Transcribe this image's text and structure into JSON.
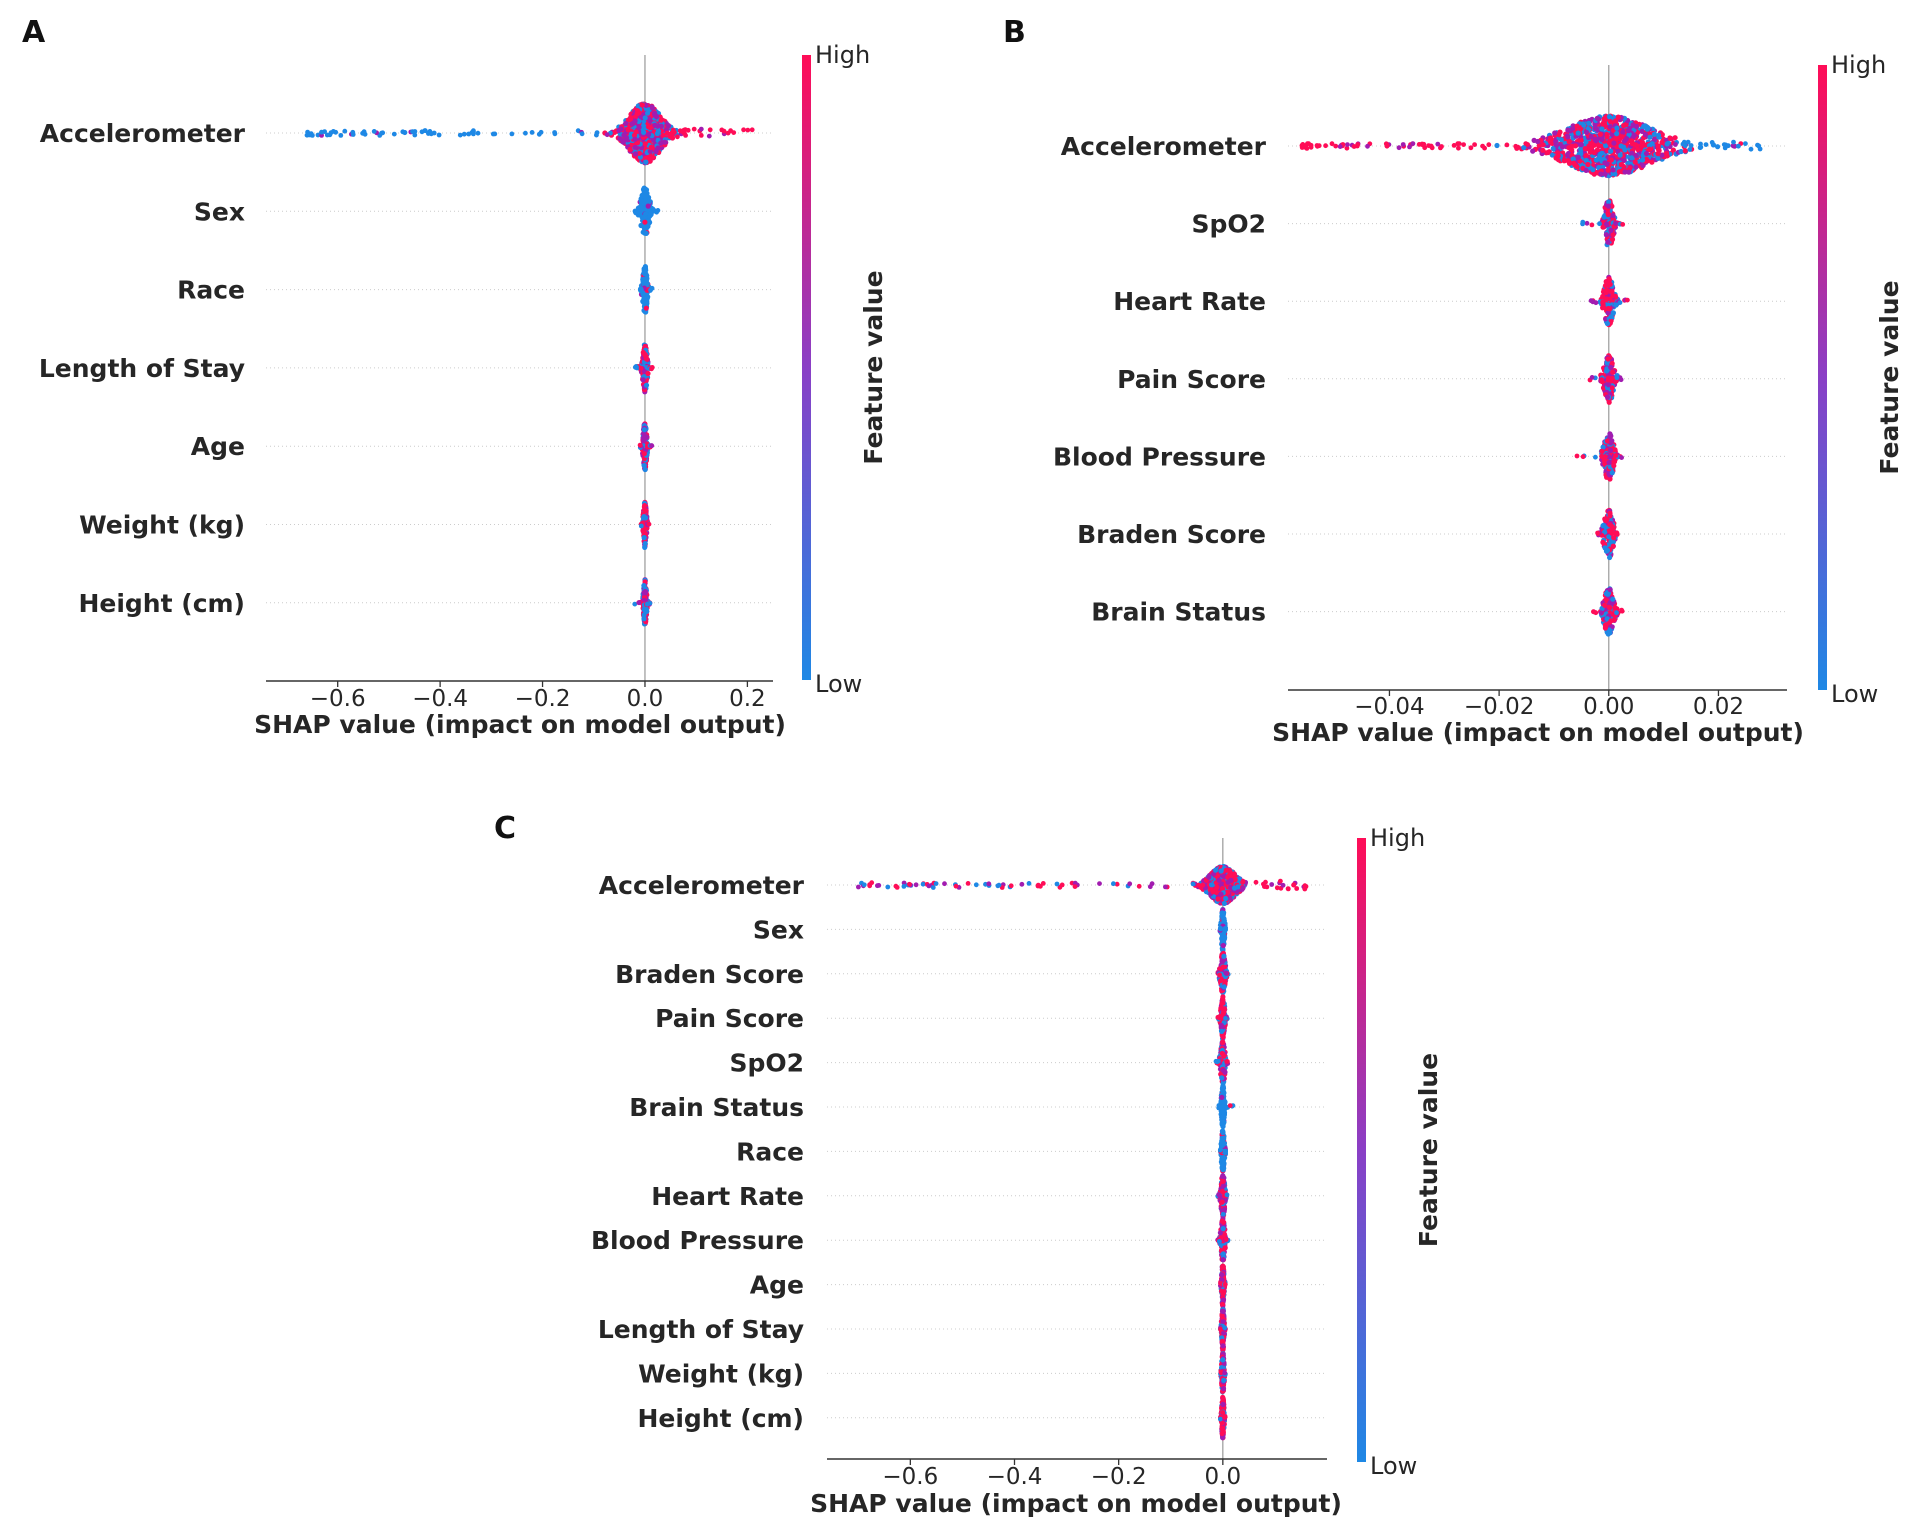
{
  "chart_data": [
    {
      "panel": "A",
      "type": "scatter",
      "subtype": "shap-beeswarm",
      "features": [
        "Accelerometer",
        "Sex",
        "Race",
        "Length of Stay",
        "Age",
        "Weight (kg)",
        "Height (cm)"
      ],
      "spread": [
        [
          -0.66,
          0.21
        ],
        [
          -0.02,
          0.03
        ],
        [
          -0.01,
          0.025
        ],
        [
          -0.02,
          0.025
        ],
        [
          -0.01,
          0.015
        ],
        [
          -0.008,
          0.008
        ],
        [
          -0.02,
          0.01
        ]
      ],
      "core_width": [
        0.045,
        0.012,
        0.006,
        0.006,
        0.005,
        0.004,
        0.004
      ],
      "xticks": [
        -0.6,
        -0.4,
        -0.2,
        0.0,
        0.2
      ],
      "xtick_labels": [
        "−0.6",
        "−0.4",
        "−0.2",
        "0.0",
        "0.2"
      ],
      "xlim": [
        -0.74,
        0.25
      ],
      "xlabel": "SHAP value (impact on model output)",
      "colorbar": {
        "title": "Feature value",
        "high": "High",
        "low": "Low"
      },
      "dominant_color": [
        "mixed",
        "low",
        "low",
        "mixed",
        "mixed",
        "mixed",
        "mixed"
      ],
      "tail_color": "low"
    },
    {
      "panel": "B",
      "type": "scatter",
      "subtype": "shap-beeswarm",
      "features": [
        "Accelerometer",
        "SpO2",
        "Heart Rate",
        "Pain Score",
        "Blood Pressure",
        "Braden Score",
        "Brain Status"
      ],
      "spread": [
        [
          -0.056,
          0.028
        ],
        [
          -0.005,
          0.003
        ],
        [
          -0.0035,
          0.0035
        ],
        [
          -0.004,
          0.003
        ],
        [
          -0.006,
          0.0025
        ],
        [
          -0.003,
          0.002
        ],
        [
          -0.003,
          0.003
        ]
      ],
      "core_width": [
        0.012,
        0.0012,
        0.0012,
        0.0012,
        0.0012,
        0.0012,
        0.0012
      ],
      "xticks": [
        -0.04,
        -0.02,
        0.0,
        0.02
      ],
      "xtick_labels": [
        "−0.04",
        "−0.02",
        "0.00",
        "0.02"
      ],
      "xlim": [
        -0.0585,
        0.0325
      ],
      "xlabel": "SHAP value (impact on model output)",
      "colorbar": {
        "title": "Feature value",
        "high": "High",
        "low": "Low"
      },
      "dominant_color": [
        "mixed",
        "mixed",
        "mixed",
        "mixed",
        "mixed",
        "mixed",
        "mixed"
      ],
      "tail_color": "high"
    },
    {
      "panel": "C",
      "type": "scatter",
      "subtype": "shap-beeswarm",
      "features": [
        "Accelerometer",
        "Sex",
        "Braden Score",
        "Pain Score",
        "SpO2",
        "Brain Status",
        "Race",
        "Heart Rate",
        "Blood Pressure",
        "Age",
        "Length of Stay",
        "Weight (kg)",
        "Height (cm)"
      ],
      "spread": [
        [
          -0.7,
          0.16
        ],
        [
          -0.005,
          0.005
        ],
        [
          -0.01,
          0.015
        ],
        [
          -0.01,
          0.01
        ],
        [
          -0.015,
          0.01
        ],
        [
          -0.008,
          0.02
        ],
        [
          -0.005,
          0.005
        ],
        [
          -0.01,
          0.008
        ],
        [
          -0.01,
          0.01
        ],
        [
          -0.005,
          0.005
        ],
        [
          -0.005,
          0.005
        ],
        [
          -0.005,
          0.005
        ],
        [
          -0.005,
          0.005
        ]
      ],
      "core_width": [
        0.035,
        0.004,
        0.006,
        0.005,
        0.006,
        0.004,
        0.004,
        0.005,
        0.005,
        0.003,
        0.003,
        0.003,
        0.003
      ],
      "xticks": [
        -0.6,
        -0.4,
        -0.2,
        0.0
      ],
      "xtick_labels": [
        "−0.6",
        "−0.4",
        "−0.2",
        "0.0"
      ],
      "xlim": [
        -0.76,
        0.2
      ],
      "xlabel": "SHAP value (impact on model output)",
      "colorbar": {
        "title": "Feature value",
        "high": "High",
        "low": "Low"
      },
      "dominant_color": [
        "mixed",
        "low",
        "mixed",
        "mixed",
        "mixed",
        "low",
        "low",
        "mixed",
        "mixed",
        "mixed",
        "mixed",
        "mixed",
        "mixed"
      ],
      "tail_color": "mixed"
    }
  ],
  "colors": {
    "low": "#1e88e5",
    "high": "#ff0d57",
    "mid": "#a21cb0",
    "grid": "#cccccc",
    "axis": "#333333",
    "zero_line": "#999999"
  }
}
